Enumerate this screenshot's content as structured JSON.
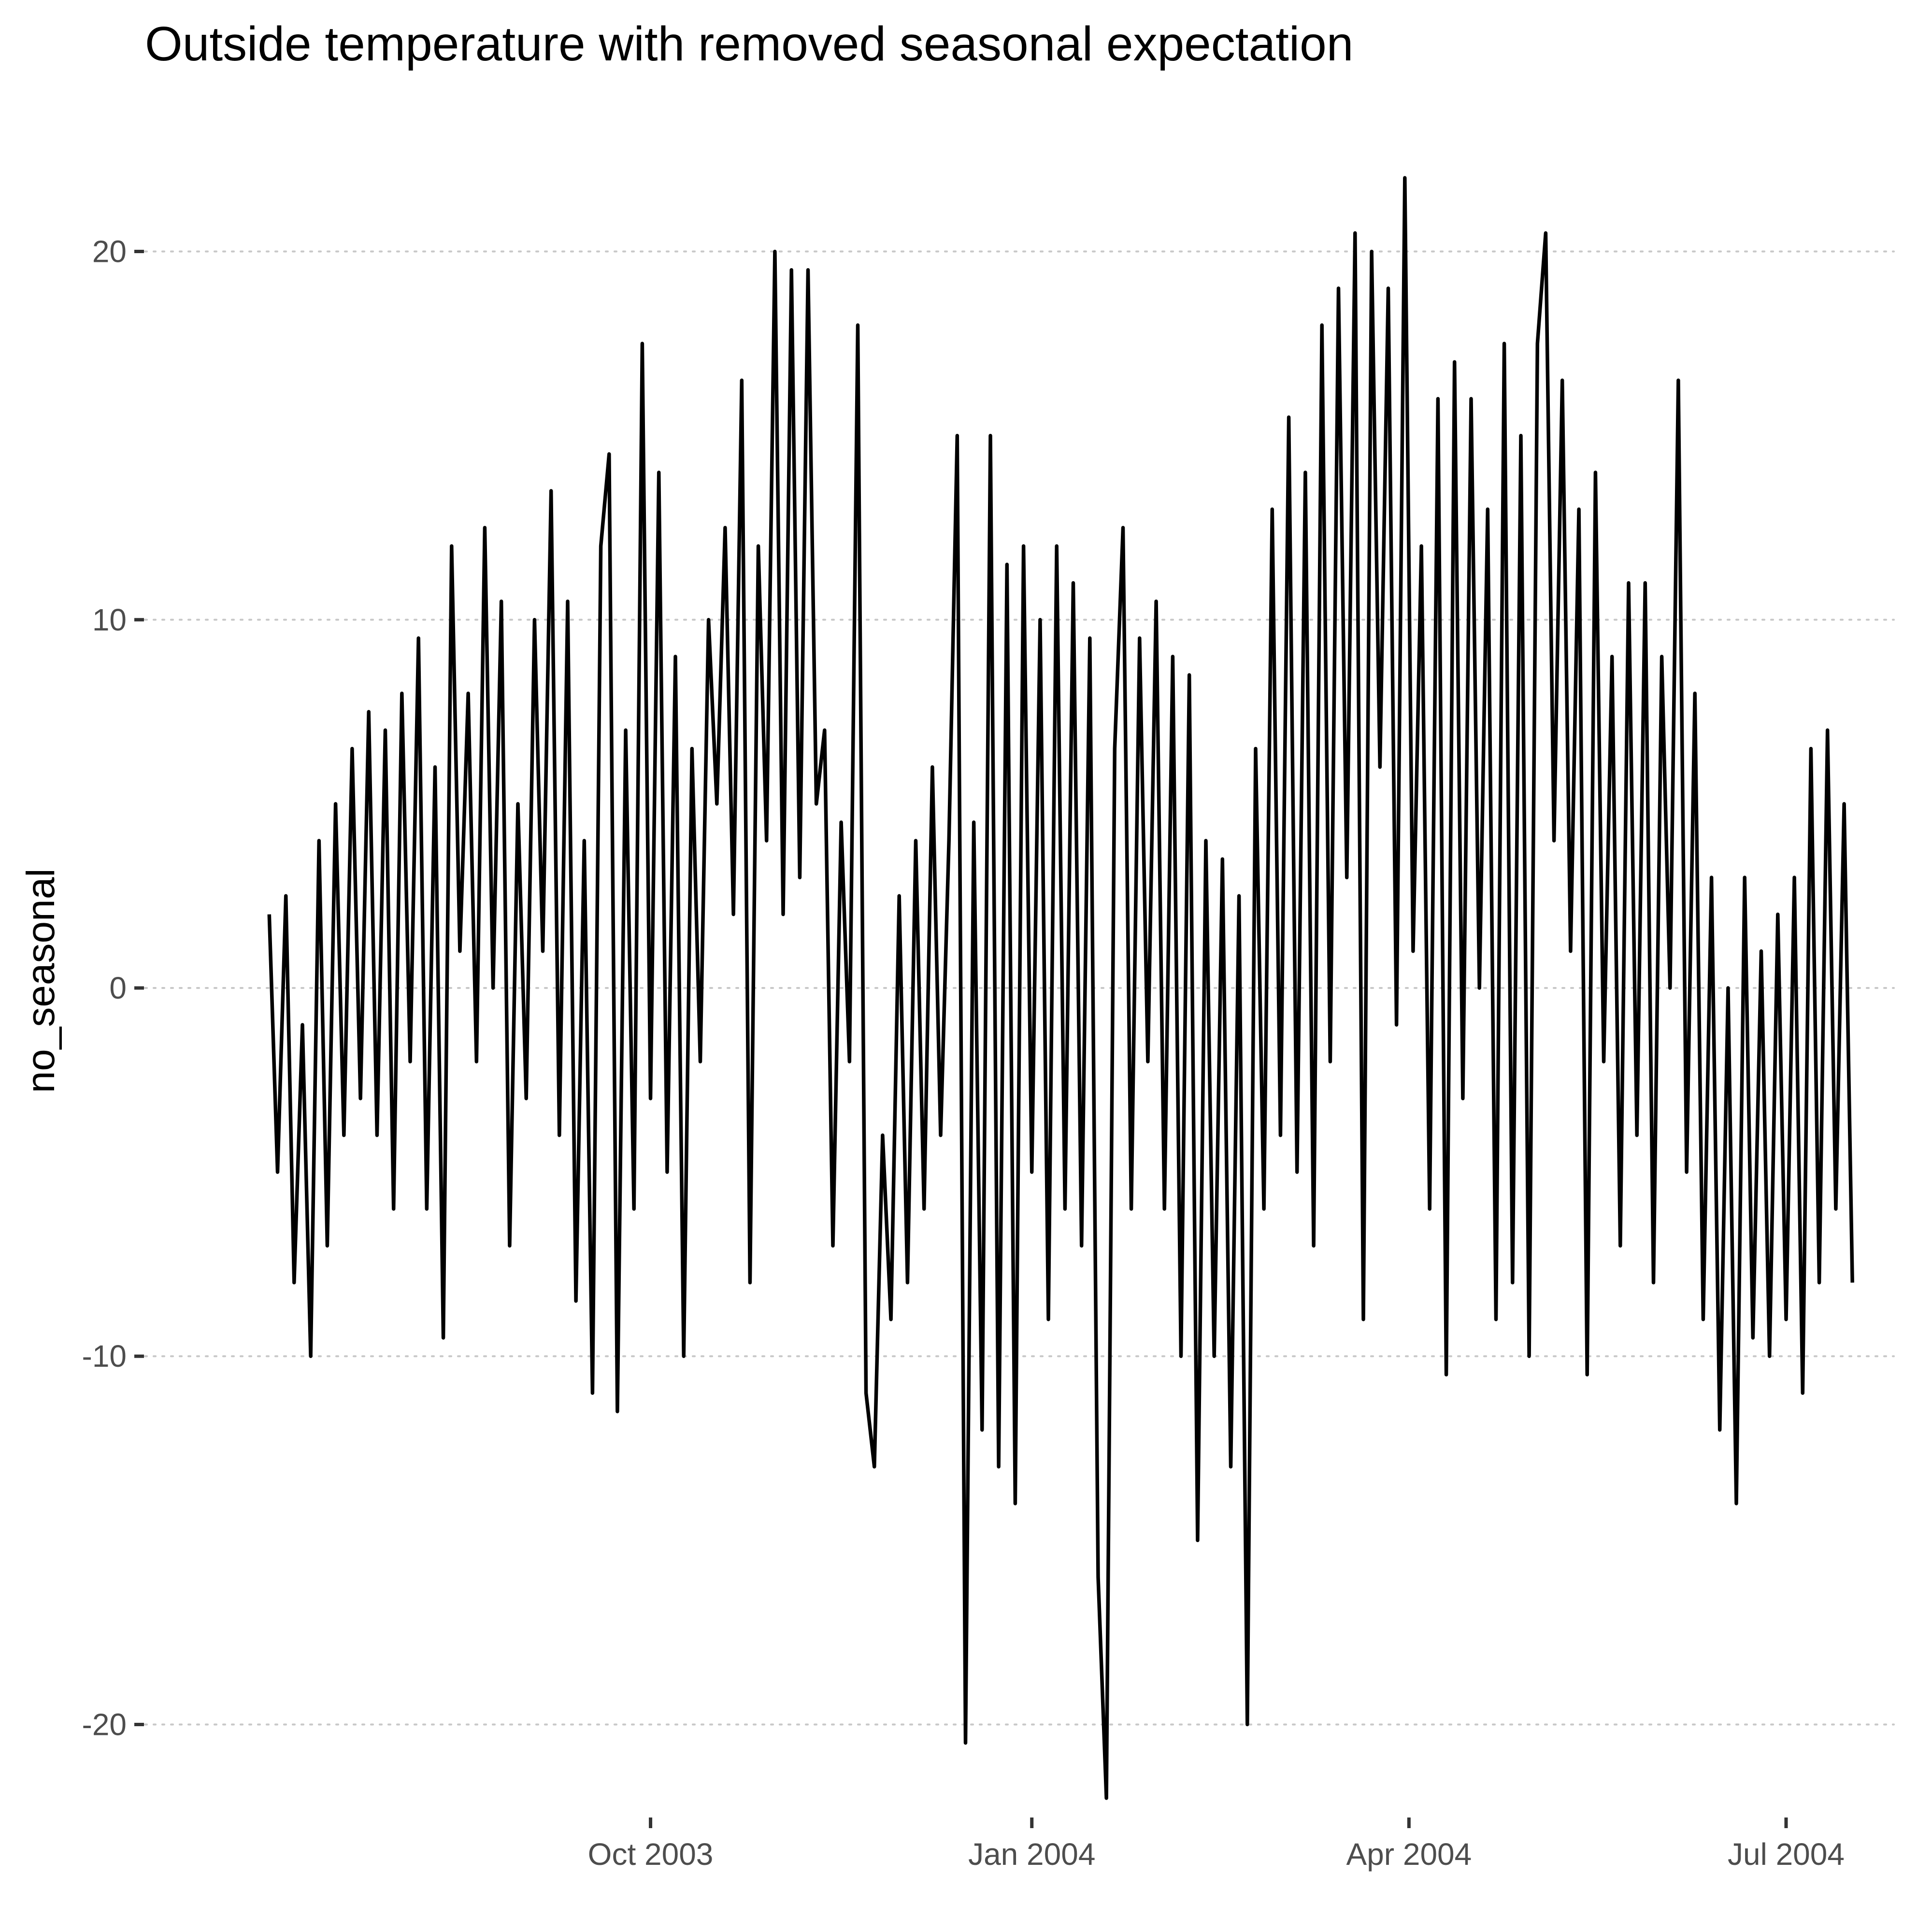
{
  "chart_data": {
    "type": "line",
    "title": "Outside temperature with removed seasonal expectation",
    "xlabel": "",
    "ylabel": "no_seasonal",
    "x_axis_type": "date",
    "xlim": [
      "2003-06-01",
      "2004-07-27"
    ],
    "ylim": [
      -22.5,
      22.5
    ],
    "x_ticks": [
      {
        "date": "2003-10-01",
        "label": "Oct 2003"
      },
      {
        "date": "2004-01-01",
        "label": "Jan 2004"
      },
      {
        "date": "2004-04-01",
        "label": "Apr 2004"
      },
      {
        "date": "2004-07-01",
        "label": "Jul 2004"
      }
    ],
    "y_ticks": [
      -20,
      -10,
      0,
      10,
      20
    ],
    "y_tick_labels": [
      "-20",
      "-10",
      "0",
      "10",
      "20"
    ],
    "grid": "horizontal dotted major lines",
    "legend": "none",
    "line_color": "#000000",
    "series": [
      {
        "note_values_are_daily_approximations": true,
        "points": [
          [
            "2003-07-01",
            2.0
          ],
          [
            "2003-07-03",
            -5.0
          ],
          [
            "2003-07-05",
            2.5
          ],
          [
            "2003-07-07",
            -8.0
          ],
          [
            "2003-07-09",
            -1.0
          ],
          [
            "2003-07-11",
            -10.0
          ],
          [
            "2003-07-13",
            4.0
          ],
          [
            "2003-07-15",
            -7.0
          ],
          [
            "2003-07-17",
            5.0
          ],
          [
            "2003-07-19",
            -4.0
          ],
          [
            "2003-07-21",
            6.5
          ],
          [
            "2003-07-23",
            -3.0
          ],
          [
            "2003-07-25",
            7.5
          ],
          [
            "2003-07-27",
            -4.0
          ],
          [
            "2003-07-29",
            7.0
          ],
          [
            "2003-07-31",
            -6.0
          ],
          [
            "2003-08-02",
            8.0
          ],
          [
            "2003-08-04",
            -2.0
          ],
          [
            "2003-08-06",
            9.5
          ],
          [
            "2003-08-08",
            -6.0
          ],
          [
            "2003-08-10",
            6.0
          ],
          [
            "2003-08-12",
            -9.5
          ],
          [
            "2003-08-14",
            12.0
          ],
          [
            "2003-08-16",
            1.0
          ],
          [
            "2003-08-18",
            8.0
          ],
          [
            "2003-08-20",
            -2.0
          ],
          [
            "2003-08-22",
            12.5
          ],
          [
            "2003-08-24",
            0.0
          ],
          [
            "2003-08-26",
            10.5
          ],
          [
            "2003-08-28",
            -7.0
          ],
          [
            "2003-08-30",
            5.0
          ],
          [
            "2003-09-01",
            -3.0
          ],
          [
            "2003-09-03",
            10.0
          ],
          [
            "2003-09-05",
            1.0
          ],
          [
            "2003-09-07",
            13.5
          ],
          [
            "2003-09-09",
            -4.0
          ],
          [
            "2003-09-11",
            10.5
          ],
          [
            "2003-09-13",
            -8.5
          ],
          [
            "2003-09-15",
            4.0
          ],
          [
            "2003-09-17",
            -11.0
          ],
          [
            "2003-09-19",
            12.0
          ],
          [
            "2003-09-21",
            14.5
          ],
          [
            "2003-09-23",
            -11.5
          ],
          [
            "2003-09-25",
            7.0
          ],
          [
            "2003-09-27",
            -6.0
          ],
          [
            "2003-09-29",
            17.5
          ],
          [
            "2003-10-01",
            -3.0
          ],
          [
            "2003-10-03",
            14.0
          ],
          [
            "2003-10-05",
            -5.0
          ],
          [
            "2003-10-07",
            9.0
          ],
          [
            "2003-10-09",
            -10.0
          ],
          [
            "2003-10-11",
            6.5
          ],
          [
            "2003-10-13",
            -2.0
          ],
          [
            "2003-10-15",
            10.0
          ],
          [
            "2003-10-17",
            5.0
          ],
          [
            "2003-10-19",
            12.5
          ],
          [
            "2003-10-21",
            2.0
          ],
          [
            "2003-10-23",
            16.5
          ],
          [
            "2003-10-25",
            -8.0
          ],
          [
            "2003-10-27",
            12.0
          ],
          [
            "2003-10-29",
            4.0
          ],
          [
            "2003-10-31",
            20.0
          ],
          [
            "2003-11-02",
            2.0
          ],
          [
            "2003-11-04",
            19.5
          ],
          [
            "2003-11-06",
            3.0
          ],
          [
            "2003-11-08",
            19.5
          ],
          [
            "2003-11-10",
            5.0
          ],
          [
            "2003-11-12",
            7.0
          ],
          [
            "2003-11-14",
            -7.0
          ],
          [
            "2003-11-16",
            4.5
          ],
          [
            "2003-11-18",
            -2.0
          ],
          [
            "2003-11-20",
            18.0
          ],
          [
            "2003-11-22",
            -11.0
          ],
          [
            "2003-11-24",
            -13.0
          ],
          [
            "2003-11-26",
            -4.0
          ],
          [
            "2003-11-28",
            -9.0
          ],
          [
            "2003-11-30",
            2.5
          ],
          [
            "2003-12-02",
            -8.0
          ],
          [
            "2003-12-04",
            4.0
          ],
          [
            "2003-12-06",
            -6.0
          ],
          [
            "2003-12-08",
            6.0
          ],
          [
            "2003-12-10",
            -4.0
          ],
          [
            "2003-12-12",
            4.0
          ],
          [
            "2003-12-14",
            15.0
          ],
          [
            "2003-12-16",
            -20.5
          ],
          [
            "2003-12-18",
            4.5
          ],
          [
            "2003-12-20",
            -12.0
          ],
          [
            "2003-12-22",
            15.0
          ],
          [
            "2003-12-24",
            -13.0
          ],
          [
            "2003-12-26",
            11.5
          ],
          [
            "2003-12-28",
            -14.0
          ],
          [
            "2003-12-30",
            12.0
          ],
          [
            "2004-01-01",
            -5.0
          ],
          [
            "2004-01-03",
            10.0
          ],
          [
            "2004-01-05",
            -9.0
          ],
          [
            "2004-01-07",
            12.0
          ],
          [
            "2004-01-09",
            -6.0
          ],
          [
            "2004-01-11",
            11.0
          ],
          [
            "2004-01-13",
            -7.0
          ],
          [
            "2004-01-15",
            9.5
          ],
          [
            "2004-01-17",
            -16.0
          ],
          [
            "2004-01-19",
            -22.0
          ],
          [
            "2004-01-21",
            6.5
          ],
          [
            "2004-01-23",
            12.5
          ],
          [
            "2004-01-25",
            -6.0
          ],
          [
            "2004-01-27",
            9.5
          ],
          [
            "2004-01-29",
            -2.0
          ],
          [
            "2004-01-31",
            10.5
          ],
          [
            "2004-02-02",
            -6.0
          ],
          [
            "2004-02-04",
            9.0
          ],
          [
            "2004-02-06",
            -10.0
          ],
          [
            "2004-02-08",
            8.5
          ],
          [
            "2004-02-10",
            -15.0
          ],
          [
            "2004-02-12",
            4.0
          ],
          [
            "2004-02-14",
            -10.0
          ],
          [
            "2004-02-16",
            3.5
          ],
          [
            "2004-02-18",
            -13.0
          ],
          [
            "2004-02-20",
            2.5
          ],
          [
            "2004-02-22",
            -20.0
          ],
          [
            "2004-02-24",
            6.5
          ],
          [
            "2004-02-26",
            -6.0
          ],
          [
            "2004-02-28",
            13.0
          ],
          [
            "2004-03-01",
            -4.0
          ],
          [
            "2004-03-03",
            15.5
          ],
          [
            "2004-03-05",
            -5.0
          ],
          [
            "2004-03-07",
            14.0
          ],
          [
            "2004-03-09",
            -7.0
          ],
          [
            "2004-03-11",
            18.0
          ],
          [
            "2004-03-13",
            -2.0
          ],
          [
            "2004-03-15",
            19.0
          ],
          [
            "2004-03-17",
            3.0
          ],
          [
            "2004-03-19",
            20.5
          ],
          [
            "2004-03-21",
            -9.0
          ],
          [
            "2004-03-23",
            20.0
          ],
          [
            "2004-03-25",
            6.0
          ],
          [
            "2004-03-27",
            19.0
          ],
          [
            "2004-03-29",
            -1.0
          ],
          [
            "2004-03-31",
            22.0
          ],
          [
            "2004-04-02",
            1.0
          ],
          [
            "2004-04-04",
            12.0
          ],
          [
            "2004-04-06",
            -6.0
          ],
          [
            "2004-04-08",
            16.0
          ],
          [
            "2004-04-10",
            -10.5
          ],
          [
            "2004-04-12",
            17.0
          ],
          [
            "2004-04-14",
            -3.0
          ],
          [
            "2004-04-16",
            16.0
          ],
          [
            "2004-04-18",
            0.0
          ],
          [
            "2004-04-20",
            13.0
          ],
          [
            "2004-04-22",
            -9.0
          ],
          [
            "2004-04-24",
            17.5
          ],
          [
            "2004-04-26",
            -8.0
          ],
          [
            "2004-04-28",
            15.0
          ],
          [
            "2004-04-30",
            -10.0
          ],
          [
            "2004-05-02",
            17.5
          ],
          [
            "2004-05-04",
            20.5
          ],
          [
            "2004-05-06",
            4.0
          ],
          [
            "2004-05-08",
            16.5
          ],
          [
            "2004-05-10",
            1.0
          ],
          [
            "2004-05-12",
            13.0
          ],
          [
            "2004-05-14",
            -10.5
          ],
          [
            "2004-05-16",
            14.0
          ],
          [
            "2004-05-18",
            -2.0
          ],
          [
            "2004-05-20",
            9.0
          ],
          [
            "2004-05-22",
            -7.0
          ],
          [
            "2004-05-24",
            11.0
          ],
          [
            "2004-05-26",
            -4.0
          ],
          [
            "2004-05-28",
            11.0
          ],
          [
            "2004-05-30",
            -8.0
          ],
          [
            "2004-06-01",
            9.0
          ],
          [
            "2004-06-03",
            0.0
          ],
          [
            "2004-06-05",
            16.5
          ],
          [
            "2004-06-07",
            -5.0
          ],
          [
            "2004-06-09",
            8.0
          ],
          [
            "2004-06-11",
            -9.0
          ],
          [
            "2004-06-13",
            3.0
          ],
          [
            "2004-06-15",
            -12.0
          ],
          [
            "2004-06-17",
            0.0
          ],
          [
            "2004-06-19",
            -14.0
          ],
          [
            "2004-06-21",
            3.0
          ],
          [
            "2004-06-23",
            -9.5
          ],
          [
            "2004-06-25",
            1.0
          ],
          [
            "2004-06-27",
            -10.0
          ],
          [
            "2004-06-29",
            2.0
          ],
          [
            "2004-07-01",
            -9.0
          ],
          [
            "2004-07-03",
            3.0
          ],
          [
            "2004-07-05",
            -11.0
          ],
          [
            "2004-07-07",
            6.5
          ],
          [
            "2004-07-09",
            -8.0
          ],
          [
            "2004-07-11",
            7.0
          ],
          [
            "2004-07-13",
            -6.0
          ],
          [
            "2004-07-15",
            5.0
          ],
          [
            "2004-07-17",
            -8.0
          ]
        ]
      }
    ]
  }
}
